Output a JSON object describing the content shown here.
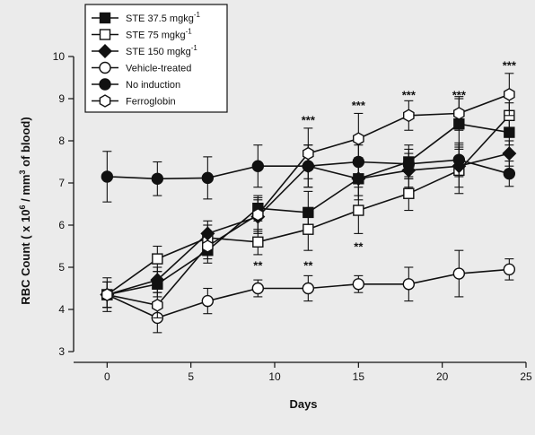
{
  "chart_data": {
    "type": "line",
    "xlabel": "Days",
    "ylabel_main": "RBC Count ( x 10",
    "ylabel_sup1": "6",
    "ylabel_mid": " / mm",
    "ylabel_sup2": "3",
    "ylabel_end": " of blood)",
    "xlim": [
      -2,
      25
    ],
    "ylim": [
      3,
      10
    ],
    "xticks": [
      "0",
      "5",
      "10",
      "15",
      "20",
      "25"
    ],
    "yticks": [
      "3",
      "4",
      "5",
      "6",
      "7",
      "8",
      "9",
      "10"
    ],
    "legend_position": "top-left",
    "series": [
      {
        "name": "STE 37.5 mgkg-1",
        "label_main": "STE 37.5 mgkg",
        "label_sup": "-1",
        "marker": "square",
        "fill": "filled",
        "x": [
          0,
          3,
          6,
          9,
          12,
          15,
          18,
          21,
          24
        ],
        "y": [
          4.35,
          4.6,
          5.4,
          6.4,
          6.3,
          7.1,
          7.5,
          8.4,
          8.2
        ],
        "err": [
          0.3,
          0.3,
          0.3,
          0.3,
          0.5,
          0.4,
          0.4,
          0.6,
          0.3
        ]
      },
      {
        "name": "STE 75 mgkg-1",
        "label_main": "STE 75 mgkg",
        "label_sup": "-1",
        "marker": "square",
        "fill": "open",
        "x": [
          0,
          3,
          6,
          9,
          12,
          15,
          18,
          21,
          24
        ],
        "y": [
          4.35,
          5.2,
          5.7,
          5.6,
          5.9,
          6.35,
          6.75,
          7.3,
          8.6
        ],
        "err": [
          0.3,
          0.3,
          0.3,
          0.3,
          0.5,
          0.55,
          0.4,
          0.55,
          0.3
        ]
      },
      {
        "name": "STE 150 mgkg-1",
        "label_main": "STE 150 mgkg",
        "label_sup": "-1",
        "marker": "diamond",
        "fill": "filled",
        "x": [
          0,
          3,
          6,
          9,
          12,
          15,
          18,
          21,
          24
        ],
        "y": [
          4.35,
          4.7,
          5.8,
          6.2,
          7.4,
          7.1,
          7.3,
          7.4,
          7.7
        ],
        "err": [
          0.3,
          0.3,
          0.3,
          0.4,
          0.5,
          0.5,
          0.4,
          0.5,
          0.3
        ]
      },
      {
        "name": "Vehicle-treated",
        "label_main": "Vehicle-treated",
        "label_sup": "",
        "marker": "circle",
        "fill": "open",
        "x": [
          0,
          3,
          6,
          9,
          12,
          15,
          18,
          21,
          24
        ],
        "y": [
          4.35,
          3.8,
          4.2,
          4.5,
          4.5,
          4.6,
          4.6,
          4.85,
          4.95
        ],
        "err": [
          0.4,
          0.35,
          0.3,
          0.2,
          0.3,
          0.2,
          0.4,
          0.55,
          0.25
        ]
      },
      {
        "name": "No induction",
        "label_main": "No induction",
        "label_sup": "",
        "marker": "circle",
        "fill": "filled",
        "x": [
          0,
          3,
          6,
          9,
          12,
          15,
          18,
          21,
          24
        ],
        "y": [
          7.15,
          7.1,
          7.12,
          7.4,
          7.4,
          7.5,
          7.45,
          7.55,
          7.22
        ],
        "err": [
          0.6,
          0.4,
          0.5,
          0.5,
          0.5,
          0.4,
          0.35,
          0.4,
          0.3
        ]
      },
      {
        "name": "Ferroglobin",
        "label_main": "Ferroglobin",
        "label_sup": "",
        "marker": "hexagon",
        "fill": "open",
        "x": [
          0,
          3,
          6,
          9,
          12,
          15,
          18,
          21,
          24
        ],
        "y": [
          4.35,
          4.1,
          5.5,
          6.25,
          7.7,
          8.05,
          8.6,
          8.65,
          9.1
        ],
        "err": [
          0.3,
          0.3,
          0.3,
          0.4,
          0.6,
          0.6,
          0.35,
          0.4,
          0.5
        ]
      }
    ],
    "annotations": [
      {
        "text": "***",
        "x": 12,
        "y": 8.5
      },
      {
        "text": "***",
        "x": 15,
        "y": 8.85
      },
      {
        "text": "***",
        "x": 18,
        "y": 9.1
      },
      {
        "text": "***",
        "x": 21,
        "y": 9.1
      },
      {
        "text": "***",
        "x": 24,
        "y": 9.8
      },
      {
        "text": "**",
        "x": 9,
        "y": 5.05
      },
      {
        "text": "**",
        "x": 12,
        "y": 5.05
      },
      {
        "text": "**",
        "x": 15,
        "y": 5.5
      }
    ]
  }
}
